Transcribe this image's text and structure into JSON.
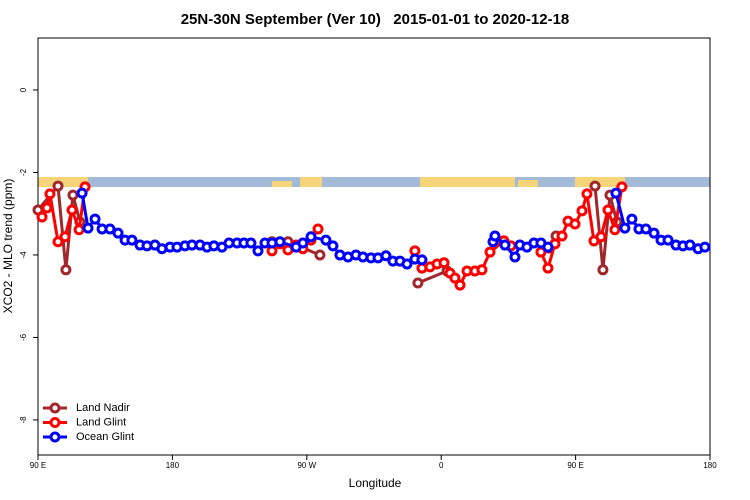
{
  "chart_data": {
    "type": "line",
    "title": "25N-30N September (Ver 10)   2015-01-01 to 2020-12-18",
    "xlabel": "Longitude",
    "ylabel": "XCO2 - MLO trend (ppm)",
    "xlim": [
      90,
      540
    ],
    "ylim": [
      -8.85,
      1.26
    ],
    "xticks": [
      {
        "value": 90,
        "label": "90 E"
      },
      180,
      {
        "value": 270,
        "label": "90 W"
      },
      {
        "value": 360,
        "label": "0"
      },
      {
        "value": 450,
        "label": "90 E"
      },
      {
        "value": 540,
        "label": "180"
      }
    ],
    "yticks": [
      0,
      -2,
      -4,
      -6,
      -8
    ],
    "legend": "bottom-left",
    "series": [
      {
        "name": "Land Nadir",
        "color": "#a0282c",
        "x": [
          90.0,
          103.4,
          108.7,
          113.4,
          118.1,
          null,
          246.7,
          257.4,
          278.8,
          null,
          344.4,
          363.9,
          null,
          402.0,
          null,
          432.2,
          436.9,
          null,
          463.0,
          468.3,
          473.0,
          477.7
        ],
        "values": [
          -2.91,
          -2.33,
          -4.36,
          -2.55,
          -3.2,
          null,
          -3.68,
          -3.68,
          -4.0,
          null,
          -4.68,
          -4.39,
          null,
          -3.66,
          null,
          -3.83,
          -3.54,
          null,
          -2.33,
          -4.36,
          -2.55,
          -3.2
        ]
      },
      {
        "name": "Land Glint",
        "color": "#ff0000",
        "x": [
          92.7,
          96.0,
          98.0,
          103.4,
          108.1,
          112.8,
          117.5,
          121.5,
          null,
          246.7,
          252.0,
          257.4,
          262.8,
          267.4,
          272.8,
          277.5,
          null,
          342.4,
          347.1,
          352.5,
          357.2,
          361.9,
          365.9,
          369.2,
          372.6,
          377.3,
          382.6,
          387.3,
          392.7,
          402.0,
          406.7,
          null,
          426.8,
          431.5,
          436.2,
          440.9,
          444.9,
          449.6,
          454.3,
          457.6,
          462.3,
          467.0,
          471.7,
          476.3,
          481.0
        ],
        "values": [
          -3.08,
          -2.86,
          -2.52,
          -3.68,
          -3.56,
          -2.91,
          -3.39,
          -2.35,
          null,
          -3.9,
          -3.73,
          -3.88,
          -3.76,
          -3.85,
          -3.64,
          -3.37,
          null,
          -3.9,
          -4.32,
          -4.29,
          -4.22,
          -4.19,
          -4.44,
          -4.56,
          -4.73,
          -4.39,
          -4.39,
          -4.36,
          -3.93,
          -3.66,
          -3.78,
          null,
          -3.93,
          -4.32,
          -3.73,
          -3.54,
          -3.18,
          -3.25,
          -2.93,
          -2.52,
          -3.66,
          -3.56,
          -2.91,
          -3.39,
          -2.35
        ]
      },
      {
        "name": "Ocean Glint",
        "color": "#0000ff",
        "x": [
          119.5,
          123.5,
          128.2,
          132.9,
          138.2,
          143.6,
          148.3,
          152.9,
          158.3,
          163.0,
          168.3,
          173.0,
          178.4,
          183.1,
          188.4,
          193.1,
          198.5,
          203.2,
          207.8,
          213.2,
          217.9,
          223.3,
          227.9,
          232.6,
          237.3,
          242.0,
          246.7,
          252.0,
          262.8,
          267.4,
          272.8,
          282.8,
          287.5,
          292.2,
          297.6,
          302.9,
          307.6,
          313.0,
          317.7,
          323.0,
          327.7,
          332.4,
          337.1,
          342.4,
          347.1,
          null,
          394.7,
          396.0,
          402.7,
          409.4,
          412.7,
          417.4,
          422.1,
          426.8,
          431.5,
          null,
          477.0,
          483.0,
          487.7,
          492.4,
          497.1,
          502.5,
          507.2,
          511.9,
          517.2,
          521.9,
          526.6,
          532.0,
          536.6
        ],
        "values": [
          -2.5,
          -3.35,
          -3.13,
          -3.37,
          -3.37,
          -3.47,
          -3.64,
          -3.64,
          -3.76,
          -3.78,
          -3.76,
          -3.85,
          -3.81,
          -3.81,
          -3.78,
          -3.76,
          -3.76,
          -3.81,
          -3.78,
          -3.81,
          -3.71,
          -3.71,
          -3.71,
          -3.71,
          -3.9,
          -3.71,
          -3.71,
          -3.68,
          -3.81,
          -3.71,
          -3.56,
          -3.64,
          -3.78,
          -4.0,
          -4.05,
          -4.0,
          -4.05,
          -4.07,
          -4.07,
          -4.02,
          -4.15,
          -4.15,
          -4.22,
          -4.1,
          -4.12,
          null,
          -3.68,
          -3.54,
          -3.76,
          -4.05,
          -3.76,
          -3.81,
          -3.71,
          -3.71,
          -3.81,
          null,
          -2.5,
          -3.35,
          -3.13,
          -3.37,
          -3.37,
          -3.47,
          -3.64,
          -3.64,
          -3.76,
          -3.78,
          -3.76,
          -3.85,
          -3.81
        ]
      }
    ]
  }
}
